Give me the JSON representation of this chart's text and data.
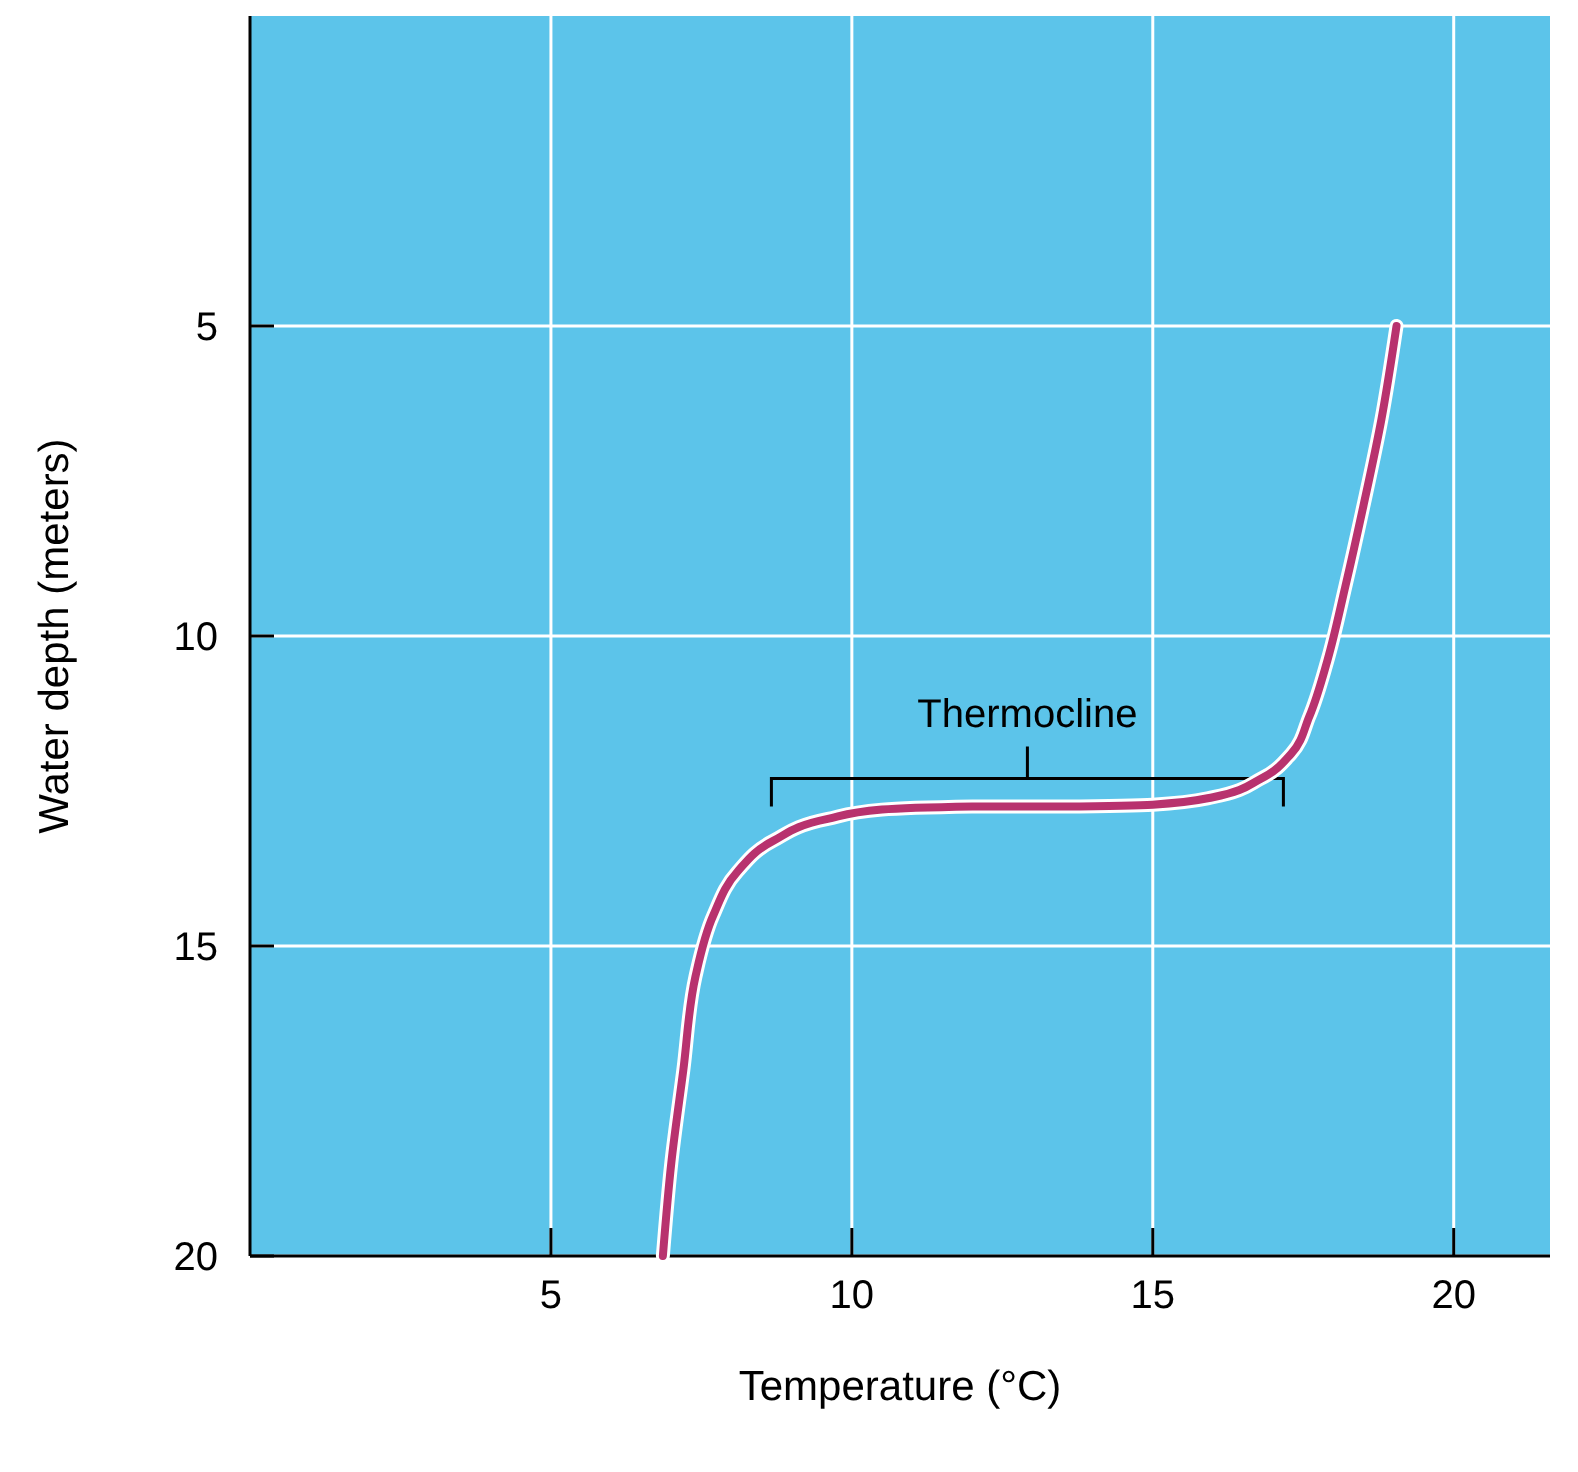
{
  "chart_data": {
    "type": "line",
    "xlabel": "Temperature (°C)",
    "ylabel": "Water depth (meters)",
    "xlim": [
      0,
      21.6
    ],
    "ylim": [
      20,
      0
    ],
    "xticks": [
      5,
      10,
      15,
      20
    ],
    "yticks": [
      5,
      10,
      15,
      20
    ],
    "grid": true,
    "series": [
      {
        "color": "#b8326e",
        "x": [
          6.86,
          7.0,
          7.2,
          7.4,
          7.7,
          8.1,
          8.7,
          9.6,
          10.5,
          12,
          13.5,
          15,
          16,
          16.8,
          17.3,
          17.6,
          17.9,
          18.2,
          18.5,
          18.8,
          19.05
        ],
        "values": [
          20,
          18.5,
          17,
          15.5,
          14.5,
          13.8,
          13.3,
          12.95,
          12.8,
          12.75,
          12.75,
          12.72,
          12.6,
          12.3,
          11.9,
          11.3,
          10.4,
          9.2,
          7.9,
          6.5,
          5
        ]
      }
    ],
    "annotations": [
      "Thermocline"
    ]
  }
}
